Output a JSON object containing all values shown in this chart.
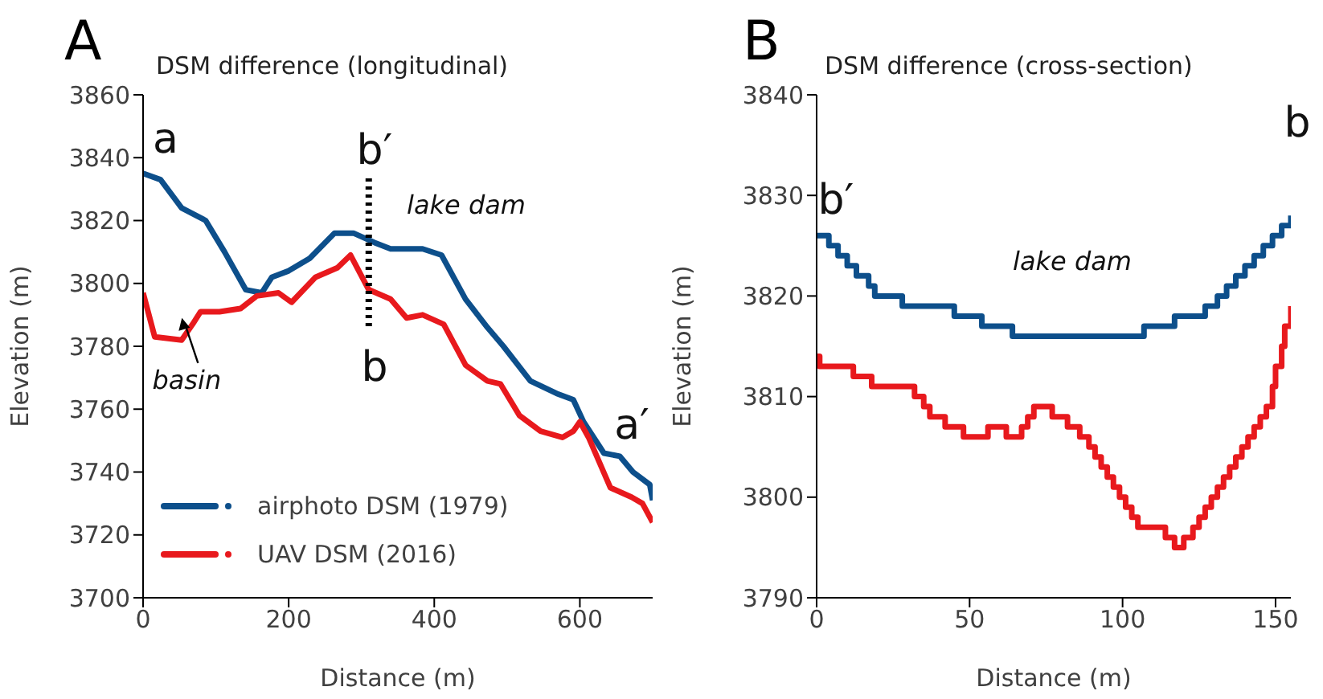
{
  "chart_data": [
    {
      "type": "line",
      "title": "DSM difference (longitudinal)",
      "xlabel": "Distance (m)",
      "ylabel": "Elevation (m)",
      "xlim": [
        0,
        700
      ],
      "xticks": [
        0,
        200,
        400,
        600
      ],
      "ylim": [
        3700,
        3860
      ],
      "yticks": [
        3700,
        3720,
        3740,
        3760,
        3780,
        3800,
        3820,
        3840,
        3860
      ],
      "grid": false,
      "legend": "bottom left",
      "marker": "none",
      "line_style": "solid",
      "ref_lines": [
        {
          "axis": "x",
          "value": 310,
          "line_style": "dotted",
          "color": "#000000"
        }
      ],
      "annotations": [
        "A",
        "a",
        "b′",
        "b",
        "lake dam",
        {
          "text": "basin",
          "x": 60,
          "y": 3789
        },
        "a′"
      ],
      "series": [
        {
          "name": "airphoto DSM (1979)",
          "color": "#0d4f8b",
          "x": [
            0,
            24,
            53,
            86,
            112,
            141,
            163,
            177,
            200,
            229,
            263,
            289,
            318,
            340,
            384,
            410,
            443,
            473,
            495,
            532,
            568,
            591,
            605,
            633,
            655,
            673,
            696,
            700
          ],
          "values": [
            3835,
            3833,
            3824,
            3820,
            3810,
            3798,
            3797,
            3802,
            3804,
            3808,
            3816,
            3816,
            3813,
            3811,
            3811,
            3809,
            3795,
            3786,
            3780,
            3769,
            3765,
            3763,
            3756,
            3746,
            3745,
            3740,
            3736,
            3731
          ]
        },
        {
          "name": "UAV DSM (2016)",
          "color": "#e8191d",
          "x": [
            0,
            16,
            53,
            68,
            79,
            105,
            134,
            156,
            186,
            204,
            237,
            267,
            285,
            310,
            340,
            362,
            384,
            413,
            443,
            473,
            491,
            517,
            546,
            576,
            591,
            600,
            612,
            642,
            671,
            686,
            700
          ],
          "values": [
            3797,
            3783,
            3782,
            3787,
            3791,
            3791,
            3792,
            3796,
            3797,
            3794,
            3802,
            3805,
            3809,
            3798,
            3795,
            3789,
            3790,
            3787,
            3774,
            3769,
            3768,
            3758,
            3753,
            3751,
            3753,
            3756,
            3751,
            3735,
            3732,
            3730,
            3724
          ]
        }
      ]
    },
    {
      "type": "step",
      "title": "DSM difference (cross-section)",
      "xlabel": "Distance (m)",
      "ylabel": "Elevation (m)",
      "xlim": [
        0,
        155
      ],
      "xticks": [
        0,
        50,
        100,
        150
      ],
      "ylim": [
        3790,
        3840
      ],
      "yticks": [
        3790,
        3800,
        3810,
        3820,
        3830,
        3840
      ],
      "grid": false,
      "marker": "none",
      "line_style": "solid",
      "annotations": [
        "B",
        "b′",
        "b",
        "lake dam"
      ],
      "series": [
        {
          "color": "#0d4f8b",
          "x": [
            0,
            4,
            7,
            10,
            13,
            17,
            19,
            28,
            45,
            54,
            64,
            107,
            117,
            127,
            131,
            134,
            137,
            140,
            143,
            146,
            149,
            152,
            155
          ],
          "values": [
            3826,
            3825,
            3824,
            3823,
            3822,
            3821,
            3820,
            3819,
            3818,
            3817,
            3816,
            3817,
            3818,
            3819,
            3820,
            3821,
            3822,
            3823,
            3824,
            3825,
            3826,
            3827,
            3828
          ]
        },
        {
          "color": "#e8191d",
          "x": [
            0,
            1,
            12,
            18,
            32,
            35,
            37,
            42,
            48,
            56,
            62,
            67,
            69,
            71,
            77,
            82,
            86,
            89,
            91,
            93,
            95,
            97,
            99,
            101,
            103,
            105,
            114,
            117,
            120,
            123,
            125,
            127,
            129,
            131,
            133,
            135,
            137,
            139,
            141,
            143,
            145,
            147,
            149,
            150,
            152,
            153,
            155
          ],
          "values": [
            3814,
            3813,
            3812,
            3811,
            3810,
            3809,
            3808,
            3807,
            3806,
            3807,
            3806,
            3807,
            3808,
            3809,
            3808,
            3807,
            3806,
            3805,
            3804,
            3803,
            3802,
            3801,
            3800,
            3799,
            3798,
            3797,
            3796,
            3795,
            3796,
            3797,
            3798,
            3799,
            3800,
            3801,
            3802,
            3803,
            3804,
            3805,
            3806,
            3807,
            3808,
            3809,
            3811,
            3813,
            3815,
            3817,
            3819
          ]
        }
      ]
    }
  ]
}
